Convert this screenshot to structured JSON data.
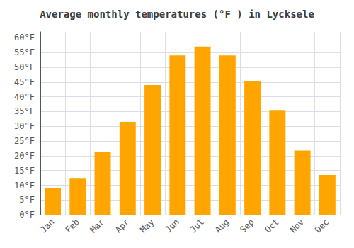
{
  "chart_data": {
    "type": "bar",
    "title": "Average monthly temperatures (°F ) in Lycksele",
    "categories": [
      "Jan",
      "Feb",
      "Mar",
      "Apr",
      "May",
      "Jun",
      "Jul",
      "Aug",
      "Sep",
      "Oct",
      "Nov",
      "Dec"
    ],
    "values": [
      9.0,
      12.5,
      21.2,
      31.5,
      44.0,
      54.0,
      57.0,
      54.0,
      45.2,
      35.5,
      21.8,
      13.5
    ],
    "color": "#FFA500",
    "ylim": [
      0,
      62
    ],
    "yticks": [
      {
        "value": 0,
        "label": "0°F"
      },
      {
        "value": 5,
        "label": "5°F"
      },
      {
        "value": 10,
        "label": "10°F"
      },
      {
        "value": 15,
        "label": "15°F"
      },
      {
        "value": 20,
        "label": "20°F"
      },
      {
        "value": 25,
        "label": "25°F"
      },
      {
        "value": 30,
        "label": "30°F"
      },
      {
        "value": 35,
        "label": "35°F"
      },
      {
        "value": 40,
        "label": "40°F"
      },
      {
        "value": 45,
        "label": "45°F"
      },
      {
        "value": 50,
        "label": "50°F"
      },
      {
        "value": 55,
        "label": "55°F"
      },
      {
        "value": 60,
        "label": "60°F"
      }
    ],
    "grid": true
  }
}
